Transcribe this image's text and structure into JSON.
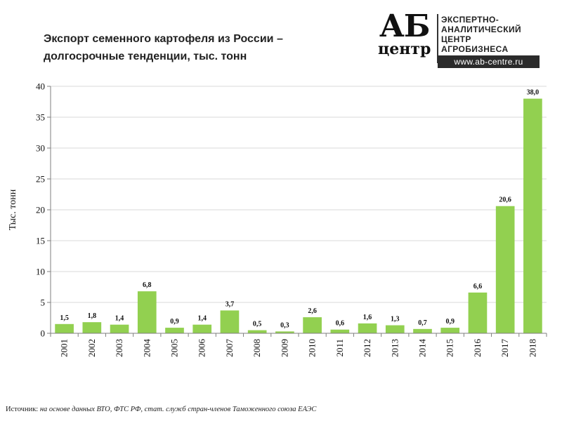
{
  "title": "Экспорт семенного картофеля из России – долгосрочные тенденции, тыс. тонн",
  "logo": {
    "big": "АБ",
    "small": "центр",
    "lines": [
      "ЭКСПЕРТНО-",
      "АНАЛИТИЧЕСКИЙ",
      "ЦЕНТР",
      "АГРОБИЗНЕСА"
    ],
    "url": "www.ab-centre.ru"
  },
  "source": {
    "label": "Источник:",
    "text": "на основе данных ВТО, ФТС РФ, стат. служб стран-членов Таможенного союза ЕАЭС"
  },
  "colors": {
    "bar": "#92d050",
    "grid": "#d9d9d9",
    "axis": "#7f7f7f"
  },
  "chart_data": {
    "type": "bar",
    "title": "Экспорт семенного картофеля из России – долгосрочные тенденции, тыс. тонн",
    "xlabel": "",
    "ylabel": "Тыс. тонн",
    "ylim": [
      0,
      40
    ],
    "yticks": [
      0,
      5,
      10,
      15,
      20,
      25,
      30,
      35,
      40
    ],
    "grid": true,
    "categories": [
      "2001",
      "2002",
      "2003",
      "2004",
      "2005",
      "2006",
      "2007",
      "2008",
      "2009",
      "2010",
      "2011",
      "2012",
      "2013",
      "2014",
      "2015",
      "2016",
      "2017",
      "2018"
    ],
    "values": [
      1.5,
      1.8,
      1.4,
      6.8,
      0.9,
      1.4,
      3.7,
      0.5,
      0.3,
      2.6,
      0.6,
      1.6,
      1.3,
      0.7,
      0.9,
      6.6,
      20.6,
      38.0
    ],
    "data_labels": [
      "1,5",
      "1,8",
      "1,4",
      "6,8",
      "0,9",
      "1,4",
      "3,7",
      "0,5",
      "0,3",
      "2,6",
      "0,6",
      "1,6",
      "1,3",
      "0,7",
      "0,9",
      "6,6",
      "20,6",
      "38,0"
    ]
  }
}
